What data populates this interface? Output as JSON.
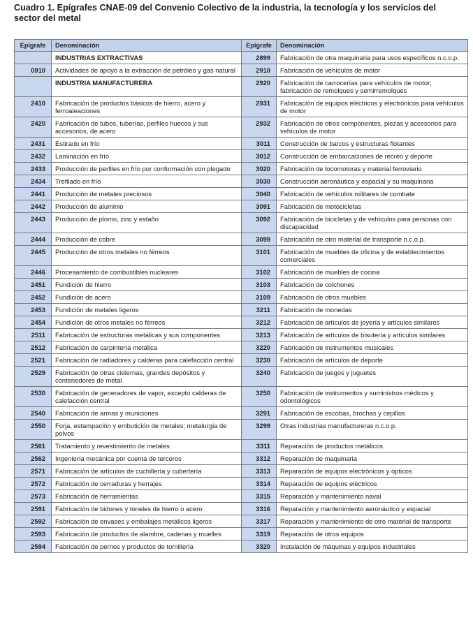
{
  "title": "Cuadro 1. Epígrafes CNAE-09 del Convenio Colectivo de la industria, la tecnología y los servicios del sector del metal",
  "table": {
    "headers": [
      "Epígrafe",
      "Denominación",
      "Epígrafe",
      "Denominación"
    ],
    "colors": {
      "header_bg": "#c3d2ea",
      "code_bg": "#c9d8ee"
    },
    "rows": [
      {
        "lc": "",
        "lt": "INDUSTRIAS EXTRACTIVAS",
        "lh": true,
        "rc": "2899",
        "rt": "Fabricación de otra maquinaria para usos específicos n.c.o.p."
      },
      {
        "lc": "0910",
        "lt": "Actividades de apoyo a la extracción de petróleo y gas natural",
        "rc": "2910",
        "rt": "Fabricación de vehículos de motor"
      },
      {
        "lc": "",
        "lt": "INDUSTRIA MANUFACTURERA",
        "lh": true,
        "rc": "2920",
        "rt": "Fabricación de carrocerías para vehículos de motor; fabricación de remolques y semirremolques"
      },
      {
        "lc": "2410",
        "lt": "Fabricación de productos básicos de hierro, acero y ferroaleaciones",
        "rc": "2931",
        "rt": "Fabricación de equipos eléctricos y electrónicos para vehículos de motor"
      },
      {
        "lc": "2420",
        "lt": "Fabricación de tubos, tuberías, perfiles huecos y sus accesorios, de acero",
        "rc": "2932",
        "rt": "Fabricación de otros componentes, piezas y accesorios para vehículos de motor"
      },
      {
        "lc": "2431",
        "lt": "Estirado en frío",
        "rc": "3011",
        "rt": "Construcción de barcos y estructuras flotantes"
      },
      {
        "lc": "2432",
        "lt": "Laminación en frío",
        "rc": "3012",
        "rt": "Construcción de embarcaciones de recreo y deporte"
      },
      {
        "lc": "2433",
        "lt": "Producción de perfiles en frío por conformación con plegado",
        "rc": "3020",
        "rt": "Fabricación de locomotoras y material ferroviario"
      },
      {
        "lc": "2434",
        "lt": "Trefilado en frío",
        "rc": "3030",
        "rt": "Construcción aeronáutica y espacial y su maquinaria"
      },
      {
        "lc": "2441",
        "lt": "Producción de metales preciosos",
        "rc": "3040",
        "rt": "Fabricación de vehículos militares de combate"
      },
      {
        "lc": "2442",
        "lt": "Producción de aluminio",
        "rc": "3091",
        "rt": "Fabricación de motocicletas"
      },
      {
        "lc": "2443",
        "lt": "Producción de plomo, zinc y estaño",
        "rc": "3092",
        "rt": "Fabricación de bicicletas y de vehículos para personas con discapacidad"
      },
      {
        "lc": "2444",
        "lt": "Producción de cobre",
        "rc": "3099",
        "rt": "Fabricación de otro material de transporte n.c.o.p."
      },
      {
        "lc": "2445",
        "lt": "Producción de otros metales no férreos",
        "rc": "3101",
        "rt": "Fabricación de muebles de oficina y de establecimientos comerciales"
      },
      {
        "lc": "2446",
        "lt": "Procesamiento de combustibles nucleares",
        "rc": "3102",
        "rt": "Fabricación de muebles de cocina"
      },
      {
        "lc": "2451",
        "lt": "Fundición de hierro",
        "rc": "3103",
        "rt": "Fabricación de colchones"
      },
      {
        "lc": "2452",
        "lt": "Fundición de acero",
        "rc": "3109",
        "rt": "Fabricación de otros muebles"
      },
      {
        "lc": "2453",
        "lt": "Fundición de metales ligeros",
        "rc": "3211",
        "rt": "Fabricación de monedas"
      },
      {
        "lc": "2454",
        "lt": "Fundición de otros metales no férreos",
        "rc": "3212",
        "rt": "Fabricación de artículos de joyería y artículos similares"
      },
      {
        "lc": "2511",
        "lt": "Fabricación de estructuras metálicas y sus componentes",
        "rc": "3213",
        "rt": "Fabricación de artículos de bisutería y artículos similares"
      },
      {
        "lc": "2512",
        "lt": "Fabricación de carpintería metálica",
        "rc": "3220",
        "rt": "Fabricación de instrumentos musicales"
      },
      {
        "lc": "2521",
        "lt": "Fabricación de radiadores y calderas para calefacción central",
        "rc": "3230",
        "rt": "Fabricación de artículos de deporte"
      },
      {
        "lc": "2529",
        "lt": "Fabricación de otras cisternas, grandes depósitos y contenedores de metal",
        "rc": "3240",
        "rt": "Fabricación de juegos y juguetes"
      },
      {
        "lc": "2530",
        "lt": "Fabricación de generadores de vapor, excepto calderas de calefacción central",
        "rc": "3250",
        "rt": "Fabricación de instrumentos y suministros médicos y odontológicos"
      },
      {
        "lc": "2540",
        "lt": "Fabricación de armas y municiones",
        "rc": "3291",
        "rt": "Fabricación de escobas, brochas y cepillos"
      },
      {
        "lc": "2550",
        "lt": "Forja, estampación y embutición de metales; metalurgia de polvos",
        "rc": "3299",
        "rt": "Otras industrias manufactureras n.c.o.p."
      },
      {
        "lc": "2561",
        "lt": "Tratamiento y revestimiento de metales",
        "rc": "3311",
        "rt": "Reparación de productos metálicos"
      },
      {
        "lc": "2562",
        "lt": "Ingeniería mecánica por cuenta de terceros",
        "rc": "3312",
        "rt": "Reparación de maquinaria"
      },
      {
        "lc": "2571",
        "lt": "Fabricación de artículos de cuchillería y cubertería",
        "rc": "3313",
        "rt": "Reparación de equipos electrónicos y ópticos"
      },
      {
        "lc": "2572",
        "lt": "Fabricación de cerraduras y herrajes",
        "rc": "3314",
        "rt": "Reparación de equipos eléctricos"
      },
      {
        "lc": "2573",
        "lt": "Fabricación de herramientas",
        "rc": "3315",
        "rt": "Reparación y mantenimiento naval"
      },
      {
        "lc": "2591",
        "lt": "Fabricación de bidones y toneles de hierro o acero",
        "rc": "3316",
        "rt": "Reparación y mantenimiento aeronáutico y espacial"
      },
      {
        "lc": "2592",
        "lt": "Fabricación de envases y embalajes metálicos ligeros",
        "rc": "3317",
        "rt": "Reparación y mantenimiento de otro material de transporte"
      },
      {
        "lc": "2593",
        "lt": "Fabricación de productos de alambre, cadenas y muelles",
        "rc": "3319",
        "rt": "Reparación de otros equipos"
      },
      {
        "lc": "2594",
        "lt": "Fabricación de pernos y productos de tornillería",
        "rc": "3320",
        "rt": "Instalación de máquinas y equipos industriales"
      }
    ]
  }
}
